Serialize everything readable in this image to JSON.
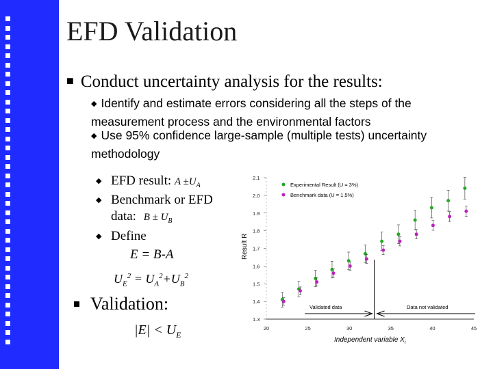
{
  "slide": {
    "title": "EFD Validation",
    "bullet1": "Conduct uncertainty analysis for the results:",
    "sub1": "Identify and estimate errors considering all the steps of the measurement process and the environmental  factors",
    "sub2": "Use 95% confidence large-sample (multiple tests) uncertainty methodology",
    "efd_label": "EFD result:",
    "efd_formula": "A ±U",
    "efd_sub": "A",
    "bench_line1": "Benchmark or EFD",
    "bench_line2": "data:",
    "bench_formula": "B ± U",
    "bench_sub": "B",
    "define": "Define",
    "e_def": "E = B-A",
    "ue_eq": "U",
    "ue_sub": "E",
    "ue_rhs": "= U",
    "ue_rhs_sub1": "A",
    "ue_plus": "+U",
    "ue_rhs_sub2": "B",
    "sup2": "2",
    "validation": "Validation:",
    "abs_e": "|E| < U",
    "abs_e_sub": "E"
  },
  "chart_data": {
    "type": "scatter",
    "xlabel": "Independent variable X",
    "xlabel_sub": "i",
    "ylabel": "Result  R",
    "xlim": [
      20,
      45
    ],
    "ylim": [
      1.3,
      2.1
    ],
    "xticks": [
      "20",
      "25",
      "30",
      "35",
      "40",
      "45"
    ],
    "yticks": [
      "1.3",
      "1.4",
      "1.5",
      "1.6",
      "1.7",
      "1.8",
      "1.9",
      "2.0",
      "2.1"
    ],
    "legend": [
      "Experimental Result (U = 3%)",
      "Benchmark data (U = 1.5%)"
    ],
    "regions": [
      "Validated data",
      "Data not validated"
    ],
    "boundary_x": 33,
    "series": [
      {
        "name": "Experimental Result (U = 3%)",
        "color": "#22aa22",
        "x": [
          22,
          24,
          26,
          28,
          30,
          32,
          34,
          36,
          38,
          40,
          42,
          44
        ],
        "y": [
          1.41,
          1.47,
          1.53,
          1.58,
          1.63,
          1.67,
          1.74,
          1.78,
          1.86,
          1.93,
          1.97,
          2.04
        ]
      },
      {
        "name": "Benchmark data (U = 1.5%)",
        "color": "#bb22bb",
        "x": [
          22,
          24,
          26,
          28,
          30,
          32,
          34,
          36,
          38,
          40,
          42,
          44
        ],
        "y": [
          1.4,
          1.46,
          1.51,
          1.56,
          1.6,
          1.64,
          1.69,
          1.74,
          1.78,
          1.83,
          1.88,
          1.91
        ]
      }
    ]
  }
}
